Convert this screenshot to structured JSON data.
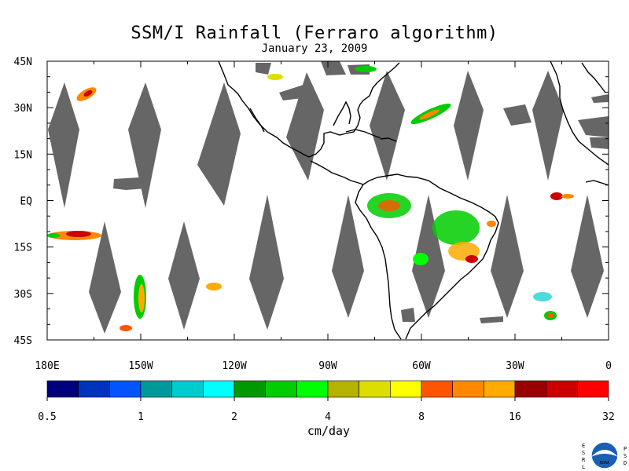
{
  "title": "SSM/I Rainfall (Ferraro algorithm)",
  "subtitle": "January 23, 2009",
  "map": {
    "lat_labels": [
      "45N",
      "30N",
      "15N",
      "EQ",
      "15S",
      "30S",
      "45S"
    ],
    "lon_labels": [
      "180E",
      "150W",
      "120W",
      "90W",
      "60W",
      "30W",
      "0"
    ],
    "lon_range": [
      -180,
      0
    ],
    "lat_range": [
      -45,
      45
    ],
    "swath_gap_color": "#666666",
    "coastline_color": "#000000"
  },
  "colorbar": {
    "unit_label": "cm/day",
    "tick_labels": [
      "0.5",
      "1",
      "2",
      "4",
      "8",
      "16",
      "32"
    ],
    "colors": [
      "#00007f",
      "#0033bb",
      "#0055ff",
      "#009999",
      "#00cccc",
      "#00ffff",
      "#009900",
      "#00cc00",
      "#00ff00",
      "#b3b300",
      "#dddd00",
      "#ffff00",
      "#ff5500",
      "#ff8800",
      "#ffaa00",
      "#990000",
      "#cc0000",
      "#ff0000"
    ]
  },
  "logo": {
    "left_letters": [
      "E",
      "S",
      "R",
      "L"
    ],
    "right_letters": [
      "P",
      "S",
      "D"
    ],
    "center_text": "NOAA"
  }
}
